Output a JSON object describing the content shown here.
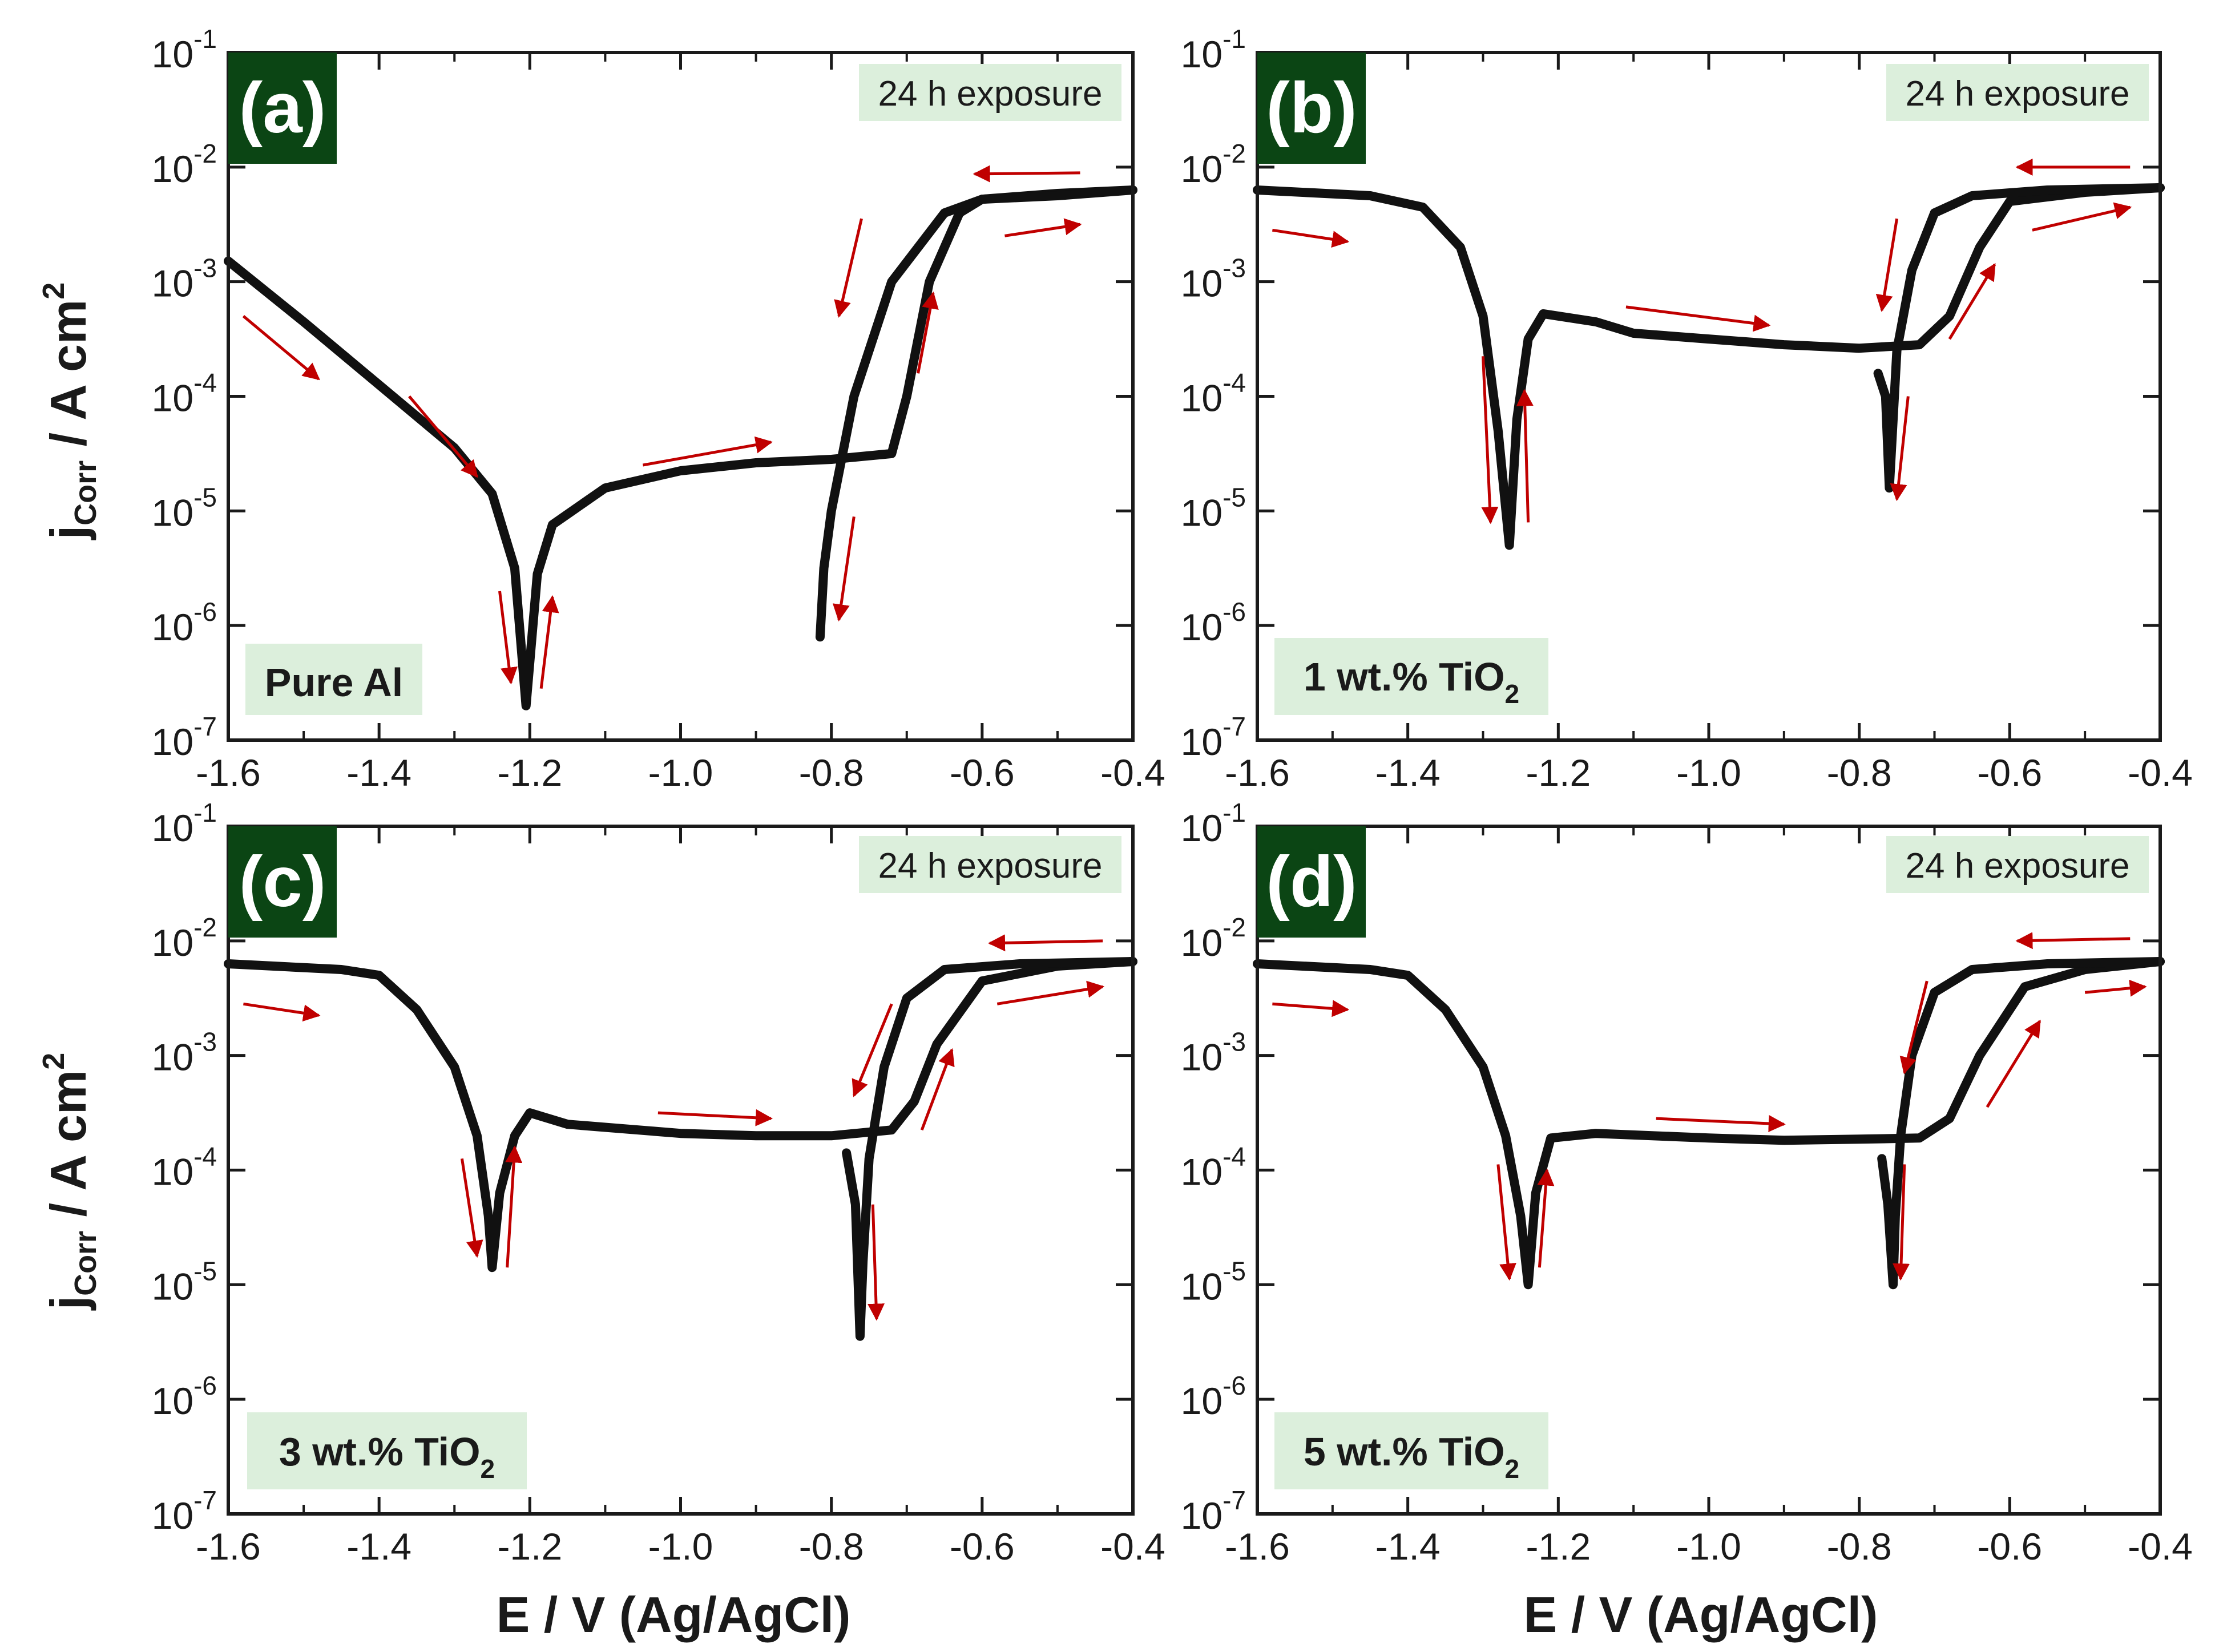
{
  "figure": {
    "xlabel": "E / V (Ag/AgCl)",
    "ylabel_main": "j",
    "ylabel_sub": "Corr",
    "ylabel_rest": " / A cm",
    "ylabel_sup": "2"
  },
  "colors": {
    "curve": "#111111",
    "arrow": "#c00000",
    "panel_label_bg": "#0b4514",
    "info_box_bg": "#dcefdc",
    "axis": "#1a1a1a"
  },
  "axis": {
    "xlim": [
      -1.6,
      -0.4
    ],
    "x_ticks": [
      -1.6,
      -1.4,
      -1.2,
      -1.0,
      -0.8,
      -0.6,
      -0.4
    ],
    "x_tick_labels": [
      "-1.6",
      "-1.4",
      "-1.2",
      "-1.0",
      "-0.8",
      "-0.6",
      "-0.4"
    ],
    "y_log_min": -7,
    "y_log_max": -1,
    "y_tick_exponents": [
      -1,
      -2,
      -3,
      -4,
      -5,
      -6,
      -7
    ],
    "y_tick_base": "10",
    "y_tick_exp_labels": [
      "-1",
      "-2",
      "-3",
      "-4",
      "-5",
      "-6",
      "-7"
    ]
  },
  "chart_data": [
    {
      "type": "line",
      "panel": "(a)",
      "exposure": "24 h exposure",
      "sample": "Pure Al",
      "sample_sub": "",
      "xlabel": "E / V (Ag/AgCl)",
      "ylabel": "jCorr / A cm2",
      "xlim": [
        -1.6,
        -0.4
      ],
      "ylim": [
        1e-07,
        0.1
      ],
      "yscale": "log",
      "series": [
        {
          "name": "forward scan",
          "points": [
            [
              -1.6,
              -2.82
            ],
            [
              -1.5,
              -3.35
            ],
            [
              -1.4,
              -3.9
            ],
            [
              -1.3,
              -4.45
            ],
            [
              -1.25,
              -4.85
            ],
            [
              -1.22,
              -5.5
            ],
            [
              -1.205,
              -6.7
            ],
            [
              -1.19,
              -5.55
            ],
            [
              -1.17,
              -5.12
            ],
            [
              -1.1,
              -4.8
            ],
            [
              -1.0,
              -4.65
            ],
            [
              -0.9,
              -4.58
            ],
            [
              -0.8,
              -4.55
            ],
            [
              -0.72,
              -4.5
            ],
            [
              -0.7,
              -4.0
            ],
            [
              -0.67,
              -3.0
            ],
            [
              -0.63,
              -2.4
            ],
            [
              -0.6,
              -2.28
            ],
            [
              -0.5,
              -2.23
            ],
            [
              -0.4,
              -2.2
            ]
          ]
        },
        {
          "name": "reverse scan",
          "points": [
            [
              -0.4,
              -2.2
            ],
            [
              -0.5,
              -2.25
            ],
            [
              -0.6,
              -2.28
            ],
            [
              -0.65,
              -2.4
            ],
            [
              -0.72,
              -3.0
            ],
            [
              -0.77,
              -4.0
            ],
            [
              -0.8,
              -5.0
            ],
            [
              -0.81,
              -5.5
            ],
            [
              -0.815,
              -6.1
            ]
          ]
        }
      ],
      "arrows": [
        {
          "from": [
            -1.58,
            -3.3
          ],
          "to": [
            -1.48,
            -3.85
          ]
        },
        {
          "from": [
            -1.36,
            -4.0
          ],
          "to": [
            -1.27,
            -4.7
          ]
        },
        {
          "from": [
            -1.24,
            -5.7
          ],
          "to": [
            -1.225,
            -6.5
          ]
        },
        {
          "from": [
            -1.185,
            -6.55
          ],
          "to": [
            -1.17,
            -5.75
          ]
        },
        {
          "from": [
            -1.05,
            -4.6
          ],
          "to": [
            -0.88,
            -4.4
          ]
        },
        {
          "from": [
            -0.76,
            -2.45
          ],
          "to": [
            -0.79,
            -3.3
          ]
        },
        {
          "from": [
            -0.77,
            -5.05
          ],
          "to": [
            -0.79,
            -5.95
          ]
        },
        {
          "from": [
            -0.685,
            -3.8
          ],
          "to": [
            -0.665,
            -3.1
          ]
        },
        {
          "from": [
            -0.57,
            -2.6
          ],
          "to": [
            -0.47,
            -2.5
          ]
        },
        {
          "from": [
            -0.47,
            -2.05
          ],
          "to": [
            -0.61,
            -2.06
          ]
        }
      ]
    },
    {
      "type": "line",
      "panel": "(b)",
      "exposure": "24 h exposure",
      "sample": "1 wt.% TiO",
      "sample_sub": "2",
      "xlabel": "E / V (Ag/AgCl)",
      "ylabel": "jCorr / A cm2",
      "xlim": [
        -1.6,
        -0.4
      ],
      "ylim": [
        1e-07,
        0.1
      ],
      "yscale": "log",
      "series": [
        {
          "name": "forward scan",
          "points": [
            [
              -1.6,
              -2.2
            ],
            [
              -1.45,
              -2.25
            ],
            [
              -1.38,
              -2.35
            ],
            [
              -1.33,
              -2.7
            ],
            [
              -1.3,
              -3.3
            ],
            [
              -1.28,
              -4.3
            ],
            [
              -1.265,
              -5.3
            ],
            [
              -1.255,
              -4.2
            ],
            [
              -1.24,
              -3.5
            ],
            [
              -1.22,
              -3.28
            ],
            [
              -1.15,
              -3.35
            ],
            [
              -1.1,
              -3.45
            ],
            [
              -1.0,
              -3.5
            ],
            [
              -0.9,
              -3.55
            ],
            [
              -0.8,
              -3.58
            ],
            [
              -0.72,
              -3.55
            ],
            [
              -0.68,
              -3.3
            ],
            [
              -0.64,
              -2.7
            ],
            [
              -0.6,
              -2.3
            ],
            [
              -0.5,
              -2.22
            ],
            [
              -0.4,
              -2.18
            ]
          ]
        },
        {
          "name": "reverse scan",
          "points": [
            [
              -0.4,
              -2.18
            ],
            [
              -0.55,
              -2.2
            ],
            [
              -0.65,
              -2.25
            ],
            [
              -0.7,
              -2.4
            ],
            [
              -0.73,
              -2.9
            ],
            [
              -0.75,
              -3.6
            ],
            [
              -0.755,
              -4.2
            ],
            [
              -0.76,
              -4.8
            ],
            [
              -0.765,
              -4.0
            ],
            [
              -0.775,
              -3.8
            ]
          ]
        }
      ],
      "arrows": [
        {
          "from": [
            -1.58,
            -2.55
          ],
          "to": [
            -1.48,
            -2.65
          ]
        },
        {
          "from": [
            -1.3,
            -3.65
          ],
          "to": [
            -1.29,
            -5.1
          ]
        },
        {
          "from": [
            -1.24,
            -5.1
          ],
          "to": [
            -1.245,
            -3.95
          ]
        },
        {
          "from": [
            -1.11,
            -3.22
          ],
          "to": [
            -0.92,
            -3.38
          ]
        },
        {
          "from": [
            -0.75,
            -2.45
          ],
          "to": [
            -0.77,
            -3.25
          ]
        },
        {
          "from": [
            -0.735,
            -4.0
          ],
          "to": [
            -0.75,
            -4.9
          ]
        },
        {
          "from": [
            -0.68,
            -3.5
          ],
          "to": [
            -0.62,
            -2.85
          ]
        },
        {
          "from": [
            -0.57,
            -2.55
          ],
          "to": [
            -0.44,
            -2.35
          ]
        },
        {
          "from": [
            -0.44,
            -2.0
          ],
          "to": [
            -0.59,
            -2.0
          ]
        }
      ]
    },
    {
      "type": "line",
      "panel": "(c)",
      "exposure": "24 h exposure",
      "sample": "3 wt.% TiO",
      "sample_sub": "2",
      "xlabel": "E / V (Ag/AgCl)",
      "ylabel": "jCorr / A cm2",
      "xlim": [
        -1.6,
        -0.4
      ],
      "ylim": [
        1e-07,
        0.1
      ],
      "yscale": "log",
      "series": [
        {
          "name": "forward scan",
          "points": [
            [
              -1.6,
              -2.2
            ],
            [
              -1.45,
              -2.25
            ],
            [
              -1.4,
              -2.3
            ],
            [
              -1.35,
              -2.6
            ],
            [
              -1.3,
              -3.1
            ],
            [
              -1.27,
              -3.7
            ],
            [
              -1.255,
              -4.4
            ],
            [
              -1.25,
              -4.85
            ],
            [
              -1.24,
              -4.2
            ],
            [
              -1.22,
              -3.7
            ],
            [
              -1.2,
              -3.5
            ],
            [
              -1.15,
              -3.6
            ],
            [
              -1.0,
              -3.68
            ],
            [
              -0.9,
              -3.7
            ],
            [
              -0.8,
              -3.7
            ],
            [
              -0.72,
              -3.65
            ],
            [
              -0.69,
              -3.4
            ],
            [
              -0.66,
              -2.9
            ],
            [
              -0.6,
              -2.35
            ],
            [
              -0.5,
              -2.22
            ],
            [
              -0.4,
              -2.18
            ]
          ]
        },
        {
          "name": "reverse scan",
          "points": [
            [
              -0.4,
              -2.18
            ],
            [
              -0.55,
              -2.2
            ],
            [
              -0.65,
              -2.25
            ],
            [
              -0.7,
              -2.5
            ],
            [
              -0.73,
              -3.1
            ],
            [
              -0.75,
              -3.9
            ],
            [
              -0.758,
              -4.8
            ],
            [
              -0.762,
              -5.45
            ],
            [
              -0.768,
              -4.3
            ],
            [
              -0.78,
              -3.85
            ]
          ]
        }
      ],
      "arrows": [
        {
          "from": [
            -1.58,
            -2.55
          ],
          "to": [
            -1.48,
            -2.65
          ]
        },
        {
          "from": [
            -1.29,
            -3.9
          ],
          "to": [
            -1.27,
            -4.75
          ]
        },
        {
          "from": [
            -1.23,
            -4.85
          ],
          "to": [
            -1.22,
            -3.8
          ]
        },
        {
          "from": [
            -1.03,
            -3.5
          ],
          "to": [
            -0.88,
            -3.55
          ]
        },
        {
          "from": [
            -0.72,
            -2.55
          ],
          "to": [
            -0.77,
            -3.35
          ]
        },
        {
          "from": [
            -0.745,
            -4.3
          ],
          "to": [
            -0.74,
            -5.3
          ]
        },
        {
          "from": [
            -0.68,
            -3.65
          ],
          "to": [
            -0.64,
            -2.95
          ]
        },
        {
          "from": [
            -0.58,
            -2.55
          ],
          "to": [
            -0.44,
            -2.4
          ]
        },
        {
          "from": [
            -0.44,
            -2.0
          ],
          "to": [
            -0.59,
            -2.02
          ]
        }
      ]
    },
    {
      "type": "line",
      "panel": "(d)",
      "exposure": "24 h exposure",
      "sample": "5 wt.% TiO",
      "sample_sub": "2",
      "xlabel": "E / V (Ag/AgCl)",
      "ylabel": "jCorr / A cm2",
      "xlim": [
        -1.6,
        -0.4
      ],
      "ylim": [
        1e-07,
        0.1
      ],
      "yscale": "log",
      "series": [
        {
          "name": "forward scan",
          "points": [
            [
              -1.6,
              -2.2
            ],
            [
              -1.45,
              -2.25
            ],
            [
              -1.4,
              -2.3
            ],
            [
              -1.35,
              -2.6
            ],
            [
              -1.3,
              -3.1
            ],
            [
              -1.27,
              -3.7
            ],
            [
              -1.25,
              -4.4
            ],
            [
              -1.24,
              -5.0
            ],
            [
              -1.23,
              -4.2
            ],
            [
              -1.21,
              -3.72
            ],
            [
              -1.15,
              -3.68
            ],
            [
              -1.0,
              -3.72
            ],
            [
              -0.9,
              -3.74
            ],
            [
              -0.8,
              -3.73
            ],
            [
              -0.72,
              -3.72
            ],
            [
              -0.68,
              -3.55
            ],
            [
              -0.64,
              -3.0
            ],
            [
              -0.58,
              -2.4
            ],
            [
              -0.5,
              -2.25
            ],
            [
              -0.4,
              -2.18
            ]
          ]
        },
        {
          "name": "reverse scan",
          "points": [
            [
              -0.4,
              -2.18
            ],
            [
              -0.55,
              -2.2
            ],
            [
              -0.65,
              -2.25
            ],
            [
              -0.7,
              -2.45
            ],
            [
              -0.73,
              -3.0
            ],
            [
              -0.745,
              -3.7
            ],
            [
              -0.752,
              -4.4
            ],
            [
              -0.755,
              -5.0
            ],
            [
              -0.762,
              -4.3
            ],
            [
              -0.77,
              -3.9
            ]
          ]
        }
      ],
      "arrows": [
        {
          "from": [
            -1.58,
            -2.55
          ],
          "to": [
            -1.48,
            -2.6
          ]
        },
        {
          "from": [
            -1.28,
            -3.95
          ],
          "to": [
            -1.265,
            -4.95
          ]
        },
        {
          "from": [
            -1.225,
            -4.85
          ],
          "to": [
            -1.215,
            -4.0
          ]
        },
        {
          "from": [
            -1.07,
            -3.55
          ],
          "to": [
            -0.9,
            -3.6
          ]
        },
        {
          "from": [
            -0.71,
            -2.35
          ],
          "to": [
            -0.74,
            -3.15
          ]
        },
        {
          "from": [
            -0.74,
            -3.95
          ],
          "to": [
            -0.745,
            -4.95
          ]
        },
        {
          "from": [
            -0.63,
            -3.45
          ],
          "to": [
            -0.56,
            -2.7
          ]
        },
        {
          "from": [
            -0.5,
            -2.45
          ],
          "to": [
            -0.42,
            -2.4
          ]
        },
        {
          "from": [
            -0.44,
            -1.98
          ],
          "to": [
            -0.59,
            -2.0
          ]
        }
      ]
    }
  ]
}
